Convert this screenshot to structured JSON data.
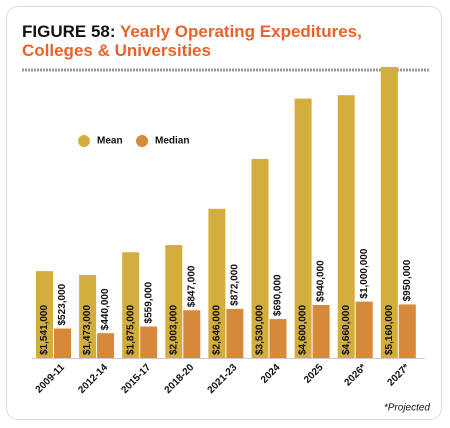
{
  "chart_data": {
    "type": "bar",
    "figure_label": "FIGURE 58:",
    "title": "Yearly Operating Expeditures, Colleges & Universities",
    "categories": [
      "2009-11",
      "2012-14",
      "2015-17",
      "2018-20",
      "2021-23",
      "2024",
      "2025",
      "2026*",
      "2027*"
    ],
    "series": [
      {
        "name": "Mean",
        "color": "#d4ae3d",
        "values": [
          1541000,
          1473000,
          1875000,
          2003000,
          2646000,
          3530000,
          4600000,
          4660000,
          5160000
        ],
        "value_labels": [
          "$1,541,000",
          "$1,473,000",
          "$1,875,000",
          "$2,003,000",
          "$2,646,000",
          "$3,530,000",
          "$4,600,000",
          "$4,660,000",
          "$5,160,000"
        ]
      },
      {
        "name": "Median",
        "color": "#d6893a",
        "values": [
          523000,
          440000,
          559000,
          847000,
          872000,
          690000,
          940000,
          1000000,
          950000
        ],
        "value_labels": [
          "$523,000",
          "$440,000",
          "$559,000",
          "$847,000",
          "$872,000",
          "$690,000",
          "$940,000",
          "$1,000,000",
          "$950,000"
        ]
      }
    ],
    "footnote": "*Projected"
  }
}
